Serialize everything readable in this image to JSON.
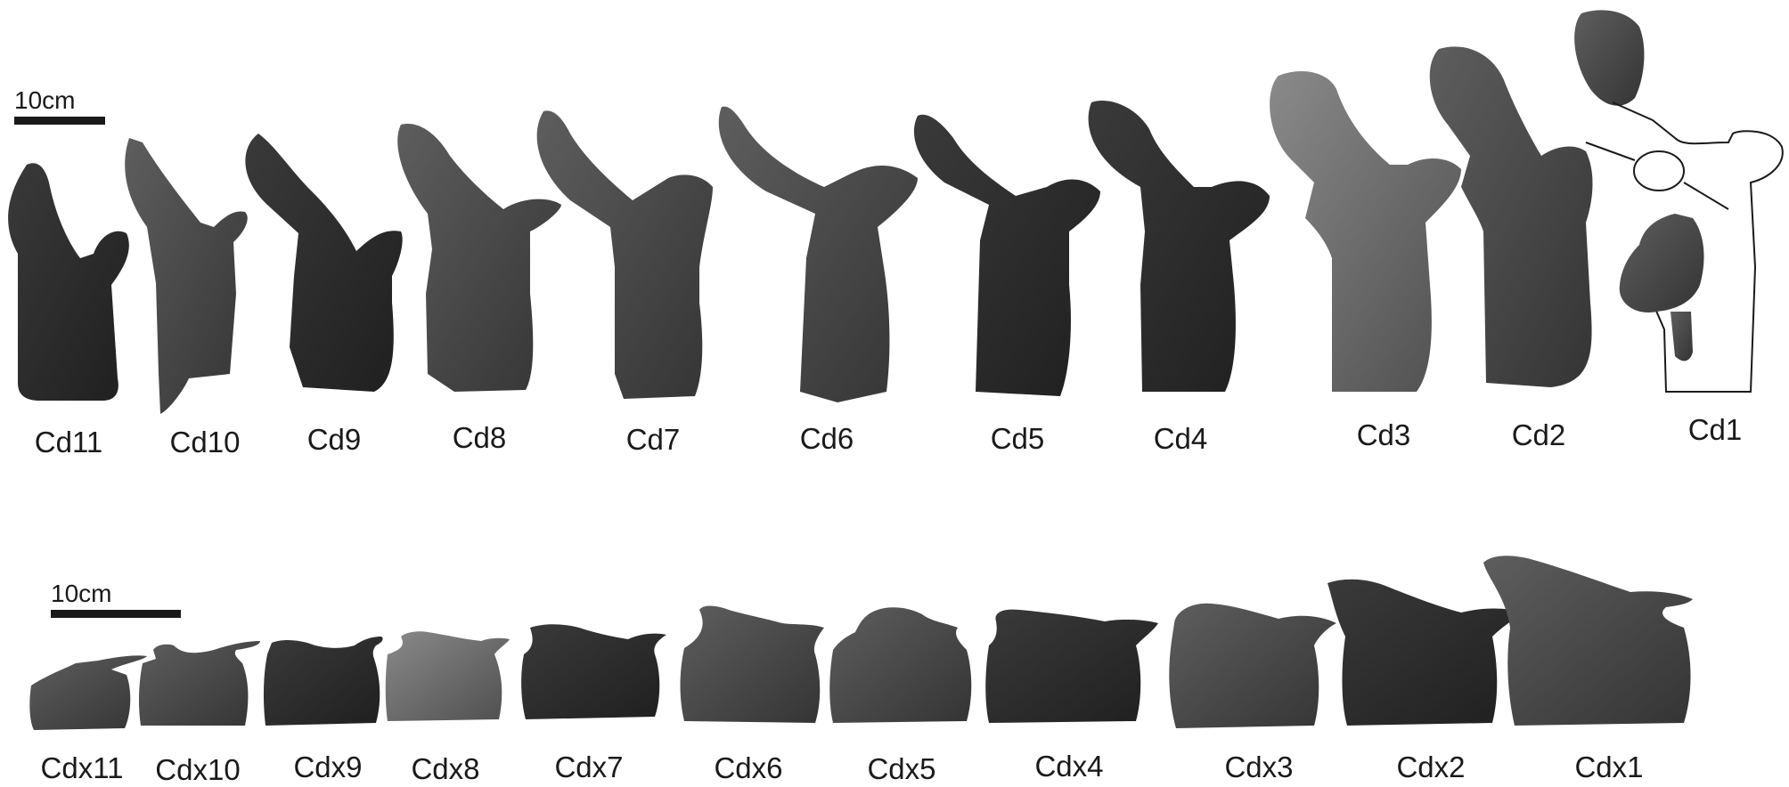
{
  "scale_bars": {
    "top": "10cm",
    "bottom": "10cm"
  },
  "top_row": [
    "Cd11",
    "Cd10",
    "Cd9",
    "Cd8",
    "Cd7",
    "Cd6",
    "Cd5",
    "Cd4",
    "Cd3",
    "Cd2",
    "Cd1"
  ],
  "bottom_row": [
    "Cdx11",
    "Cdx10",
    "Cdx9",
    "Cdx8",
    "Cdx7",
    "Cdx6",
    "Cdx5",
    "Cdx4",
    "Cdx3",
    "Cdx2",
    "Cdx1"
  ],
  "colors": {
    "bone_dark": "#2e2e2e",
    "bone_mid": "#4a4a4a",
    "bone_light": "#6b6b6b",
    "outline": "#1a1a1a"
  }
}
